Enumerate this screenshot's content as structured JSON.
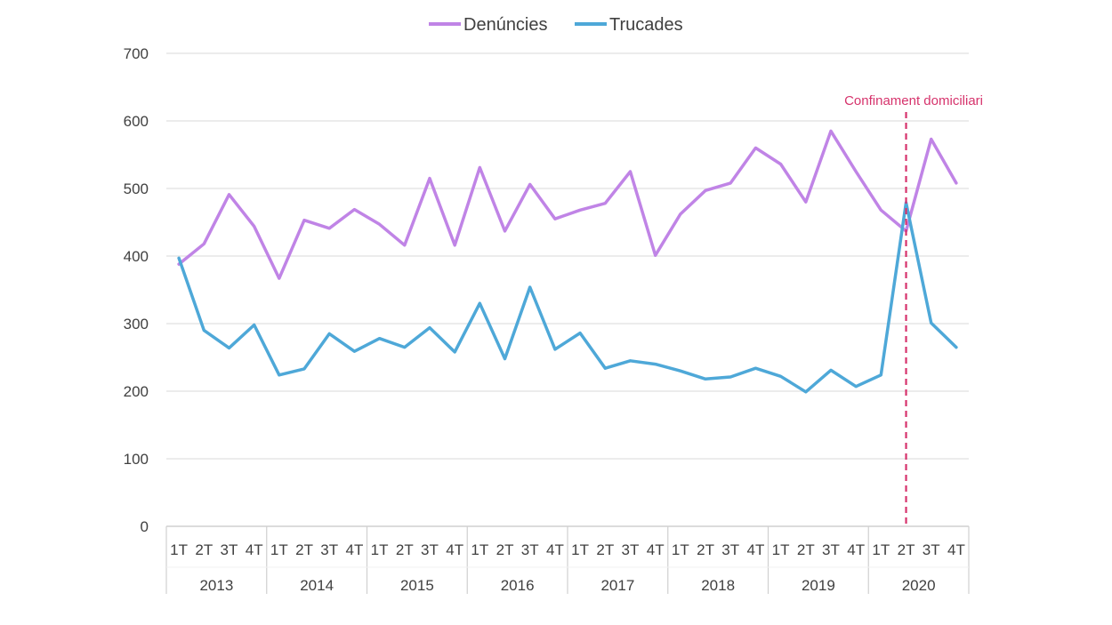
{
  "chart_data": {
    "type": "line",
    "title": "",
    "xlabel": "",
    "ylabel": "",
    "ylim": [
      0,
      700
    ],
    "yticks": [
      0,
      100,
      200,
      300,
      400,
      500,
      600,
      700
    ],
    "grid": true,
    "legend_position": "top-center",
    "quarters": [
      "1T",
      "2T",
      "3T",
      "4T"
    ],
    "years": [
      "2013",
      "2014",
      "2015",
      "2016",
      "2017",
      "2018",
      "2019",
      "2020"
    ],
    "categories": [
      "1T 2013",
      "2T 2013",
      "3T 2013",
      "4T 2013",
      "1T 2014",
      "2T 2014",
      "3T 2014",
      "4T 2014",
      "1T 2015",
      "2T 2015",
      "3T 2015",
      "4T 2015",
      "1T 2016",
      "2T 2016",
      "3T 2016",
      "4T 2016",
      "1T 2017",
      "2T 2017",
      "3T 2017",
      "4T 2017",
      "1T 2018",
      "2T 2018",
      "3T 2018",
      "4T 2018",
      "1T 2019",
      "2T 2019",
      "3T 2019",
      "4T 2019",
      "1T 2020",
      "2T 2020",
      "3T 2020",
      "4T 2020"
    ],
    "series": [
      {
        "name": "Denúncies",
        "color": "#c084e6",
        "values": [
          388,
          418,
          491,
          444,
          367,
          453,
          441,
          469,
          447,
          416,
          515,
          416,
          531,
          437,
          506,
          455,
          468,
          478,
          525,
          401,
          462,
          497,
          508,
          560,
          536,
          480,
          585,
          525,
          468,
          437,
          573,
          508
        ]
      },
      {
        "name": "Trucades",
        "color": "#4ea8d8",
        "values": [
          397,
          290,
          264,
          298,
          224,
          233,
          285,
          259,
          278,
          265,
          294,
          258,
          330,
          248,
          354,
          262,
          286,
          234,
          245,
          240,
          230,
          218,
          221,
          234,
          222,
          199,
          231,
          207,
          224,
          479,
          301,
          265
        ]
      }
    ],
    "annotation": {
      "label": "Confinament domiciliari",
      "color": "#d6336c",
      "category": "2T 2020"
    },
    "gridline_color": "#e6e6e6",
    "axis_color": "#d0d0d0"
  }
}
